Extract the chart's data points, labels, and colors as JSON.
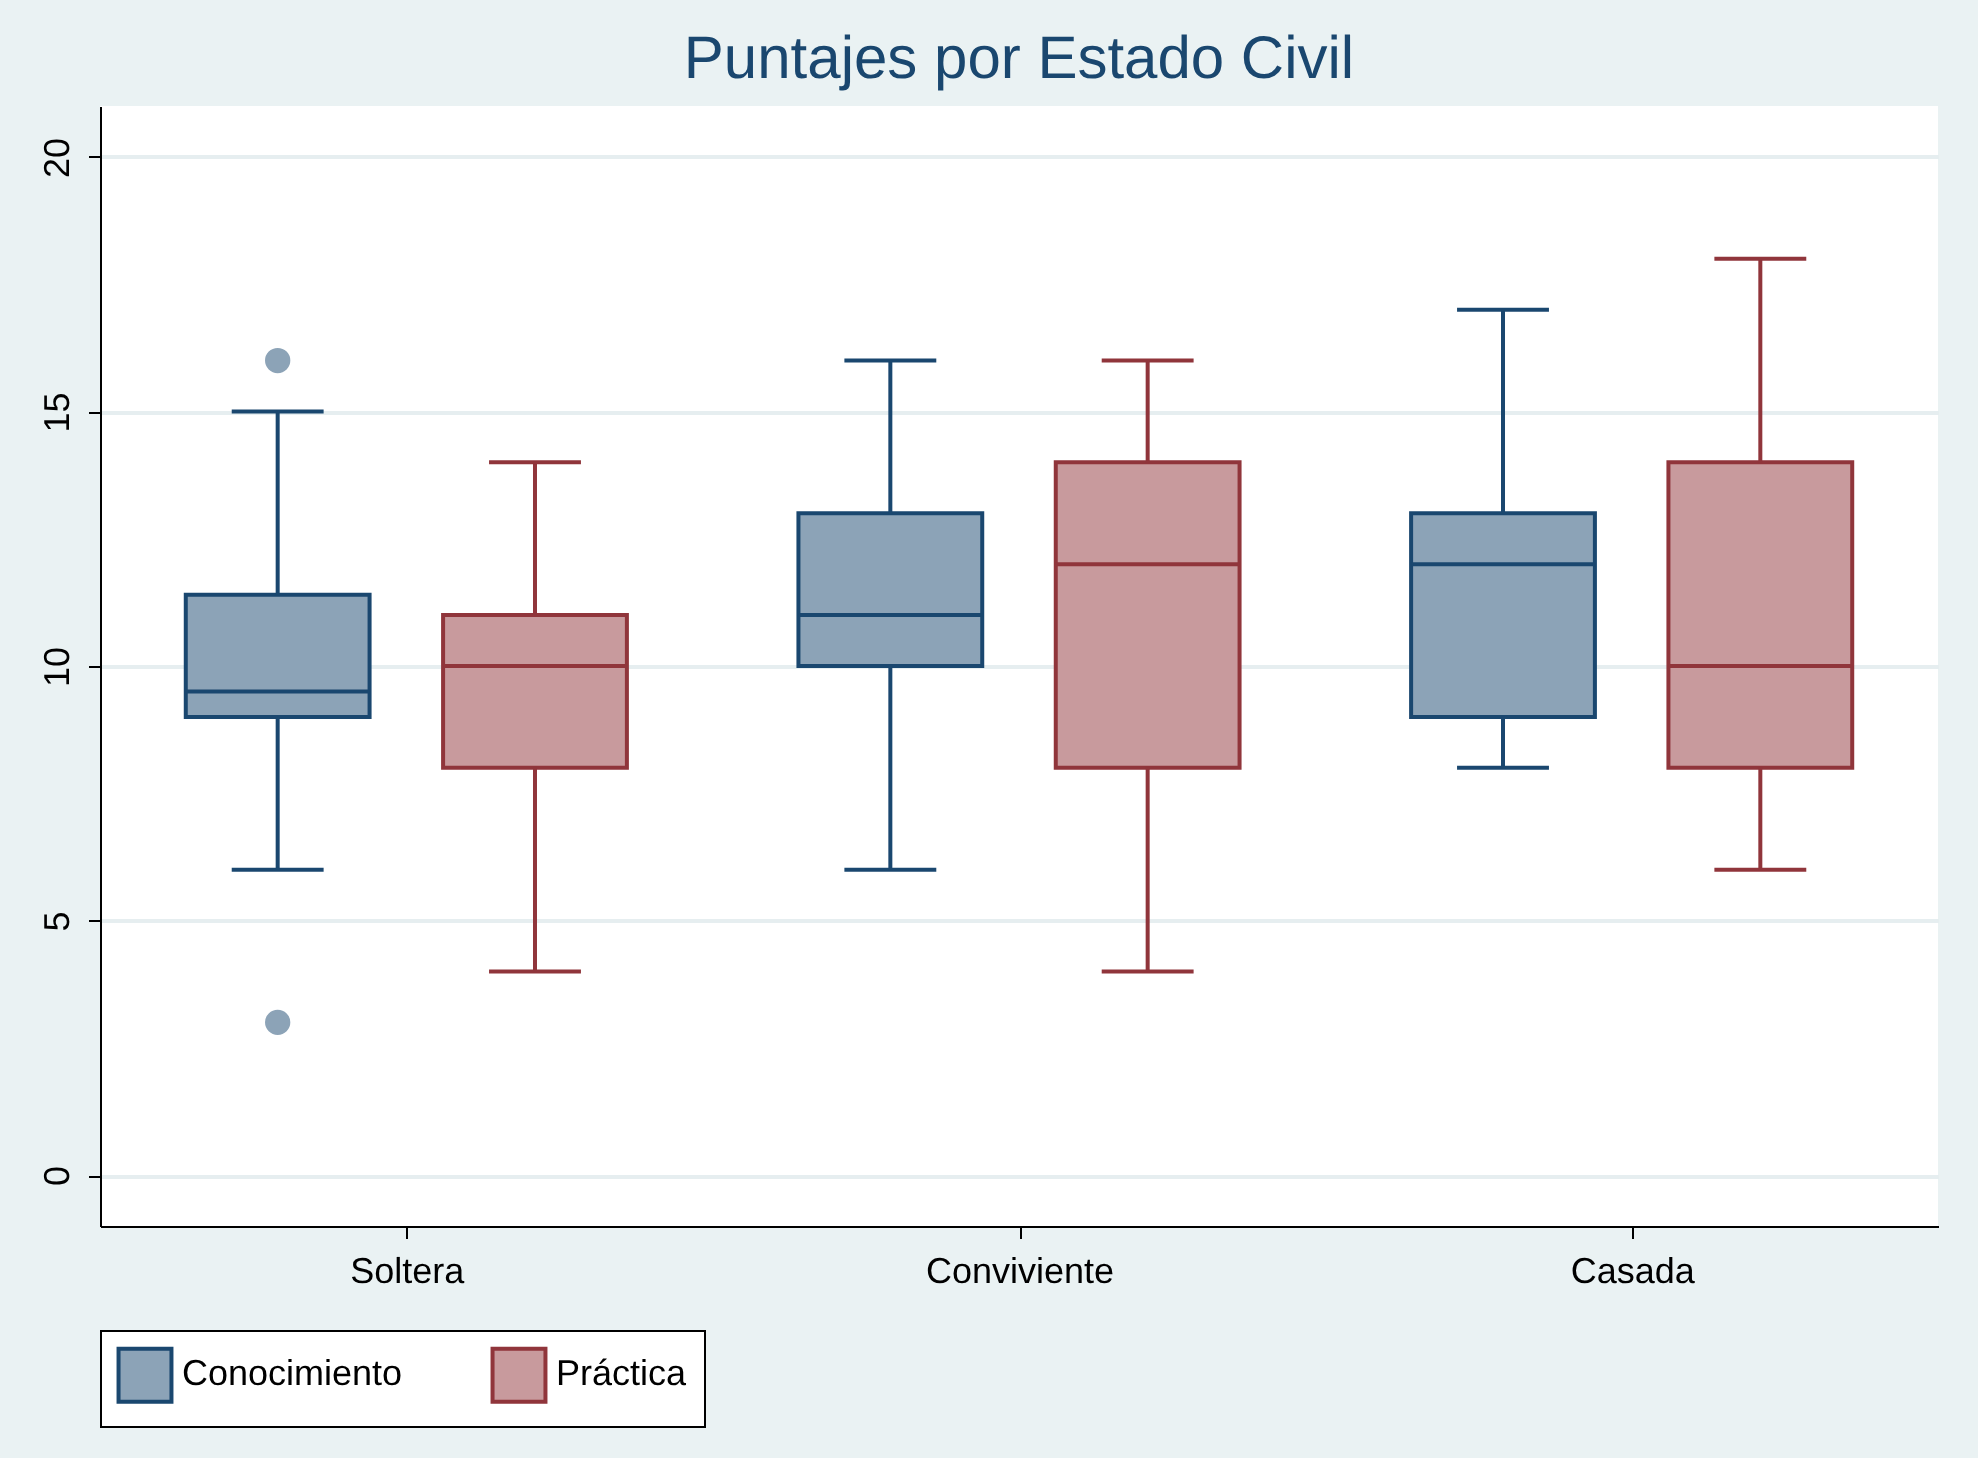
{
  "chart_data": {
    "type": "box",
    "title": "Puntajes por Estado Civil",
    "categories": [
      "Soltera",
      "Conviviente",
      "Casada"
    ],
    "series": [
      {
        "name": "Conocimiento",
        "color": "#1a476f",
        "boxes": [
          {
            "low": 6,
            "q1": 9,
            "median": 9.5,
            "q3": 11.4,
            "high": 15,
            "outliers": [
              16,
              3
            ]
          },
          {
            "low": 6,
            "q1": 10,
            "median": 11,
            "q3": 13,
            "high": 16
          },
          {
            "low": 8,
            "q1": 9,
            "median": 12,
            "q3": 13,
            "high": 17
          }
        ]
      },
      {
        "name": "Práctica",
        "color": "#90353b",
        "boxes": [
          {
            "low": 4,
            "q1": 8,
            "median": 10,
            "q3": 11,
            "high": 14
          },
          {
            "low": 4,
            "q1": 8,
            "median": 12,
            "q3": 14,
            "high": 16
          },
          {
            "low": 6,
            "q1": 8,
            "median": 10,
            "q3": 14,
            "high": 18
          }
        ]
      }
    ],
    "ylim": [
      -1,
      21
    ],
    "yticks": [
      0,
      5,
      10,
      15,
      20
    ],
    "grid": "y",
    "legend": "bottom"
  }
}
